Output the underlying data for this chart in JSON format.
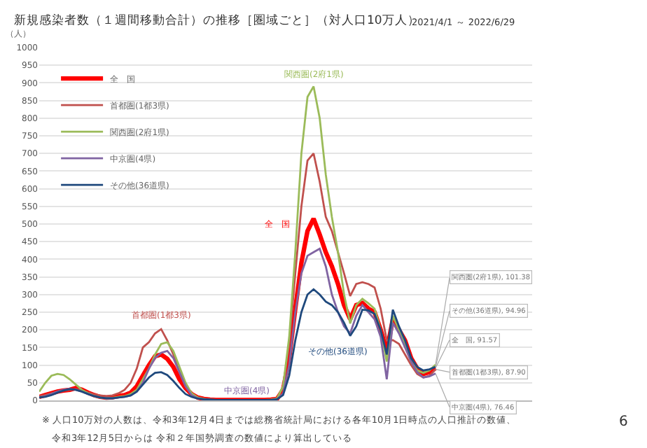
{
  "chart_data": {
    "type": "line",
    "title": "新規感染者数（１週間移動合計）の推移［圏域ごと］（対人口10万人）",
    "subtitle": "2021/4/1 ～ 2022/6/29",
    "ylabel": "（人）",
    "categories": [
      null,
      null,
      null,
      null,
      null,
      null,
      null,
      null,
      null,
      null,
      null,
      null,
      null,
      null,
      null,
      null,
      null,
      null,
      null,
      null,
      null,
      null,
      null,
      null,
      null,
      null,
      null,
      null,
      null,
      null,
      null,
      null,
      null,
      null,
      null,
      null,
      null,
      null,
      null,
      null,
      null,
      null,
      null,
      null,
      null,
      null,
      null,
      null,
      null,
      null,
      null,
      null,
      null,
      null,
      null,
      null,
      null,
      null,
      null,
      null,
      null,
      null,
      null,
      null,
      null,
      null
    ],
    "series": [
      {
        "name": "全　国",
        "color": "#ff0000",
        "values": [
          10,
          15,
          20,
          25,
          28,
          30,
          35,
          30,
          22,
          15,
          10,
          8,
          9,
          12,
          15,
          22,
          40,
          70,
          100,
          125,
          130,
          118,
          95,
          60,
          35,
          18,
          8,
          4,
          2,
          1,
          1,
          1,
          1,
          1,
          1,
          1,
          1,
          1,
          2,
          4,
          30,
          120,
          260,
          390,
          480,
          515,
          470,
          420,
          380,
          330,
          270,
          230,
          270,
          276,
          260,
          250,
          200,
          140,
          230,
          200,
          170,
          120,
          90,
          75,
          80,
          91.57
        ]
      },
      {
        "name": "首都圏(1都3県)",
        "color": "#c0504d",
        "values": [
          12,
          15,
          20,
          25,
          28,
          30,
          32,
          28,
          22,
          17,
          14,
          12,
          14,
          20,
          30,
          50,
          90,
          150,
          165,
          190,
          202,
          170,
          130,
          80,
          40,
          18,
          8,
          4,
          2,
          1,
          1,
          1,
          1,
          1,
          1,
          1,
          1,
          1,
          2,
          5,
          40,
          160,
          360,
          550,
          680,
          700,
          620,
          520,
          480,
          420,
          360,
          296,
          330,
          335,
          330,
          320,
          260,
          170,
          171,
          160,
          130,
          100,
          75,
          65,
          70,
          87.9
        ]
      },
      {
        "name": "関西圏(2府1県)",
        "color": "#9bbb59",
        "values": [
          25,
          50,
          70,
          75,
          72,
          60,
          45,
          30,
          20,
          12,
          8,
          6,
          7,
          10,
          12,
          18,
          30,
          60,
          90,
          130,
          160,
          165,
          140,
          95,
          50,
          20,
          8,
          4,
          2,
          1,
          1,
          1,
          1,
          1,
          1,
          1,
          1,
          1,
          2,
          5,
          40,
          180,
          420,
          700,
          860,
          890,
          800,
          640,
          520,
          420,
          300,
          218,
          270,
          288,
          275,
          260,
          200,
          110,
          240,
          200,
          160,
          110,
          85,
          78,
          85,
          101.38
        ]
      },
      {
        "name": "中京圏(4県)",
        "color": "#8064a2",
        "values": [
          8,
          12,
          18,
          25,
          30,
          33,
          30,
          25,
          18,
          12,
          8,
          6,
          6,
          8,
          10,
          14,
          25,
          50,
          90,
          120,
          135,
          140,
          120,
          80,
          40,
          15,
          6,
          3,
          2,
          1,
          1,
          1,
          1,
          1,
          1,
          1,
          1,
          1,
          1,
          3,
          20,
          100,
          250,
          360,
          410,
          420,
          430,
          380,
          300,
          250,
          210,
          190,
          240,
          270,
          250,
          230,
          180,
          60,
          220,
          190,
          150,
          110,
          80,
          65,
          68,
          76.46
        ]
      },
      {
        "name": "その他(36道県)",
        "color": "#1f497d",
        "values": [
          8,
          10,
          15,
          22,
          28,
          32,
          30,
          25,
          18,
          12,
          8,
          6,
          6,
          8,
          10,
          14,
          25,
          45,
          65,
          78,
          80,
          72,
          55,
          35,
          18,
          10,
          5,
          3,
          2,
          1,
          1,
          1,
          1,
          1,
          1,
          1,
          1,
          1,
          1,
          3,
          15,
          70,
          170,
          250,
          300,
          315,
          300,
          280,
          270,
          250,
          220,
          183,
          210,
          257,
          255,
          245,
          200,
          130,
          257,
          210,
          170,
          120,
          95,
          85,
          88,
          94.96
        ]
      }
    ],
    "ylim": [
      0,
      1000
    ],
    "yticks": [
      0,
      50,
      100,
      150,
      200,
      250,
      300,
      350,
      400,
      450,
      500,
      550,
      600,
      650,
      700,
      750,
      800,
      850,
      900,
      950,
      1000
    ],
    "tick_labels": "y",
    "grid": "y",
    "legend": "top left",
    "marker": "none",
    "line_style": "solid",
    "annotations": [
      "関西圏(2府1県)",
      "全　国",
      "首都圏(1都3県)",
      "中京圏(4県)",
      "その他(36道県)",
      "関西圏(2府1県), 101.38",
      "その他(36道県), 94.96",
      "全　国, 91.57",
      "首都圏(1都3県), 87.90",
      "中京圏(4県), 76.46",
      "※ 人口10万対の人数は、令和3年12月4日までは総務省統計局における各年10月1日時点の人口推計の数値、",
      "令和3年12月5日からは 令和２年国勢調査の数値により算出している",
      "6"
    ]
  }
}
